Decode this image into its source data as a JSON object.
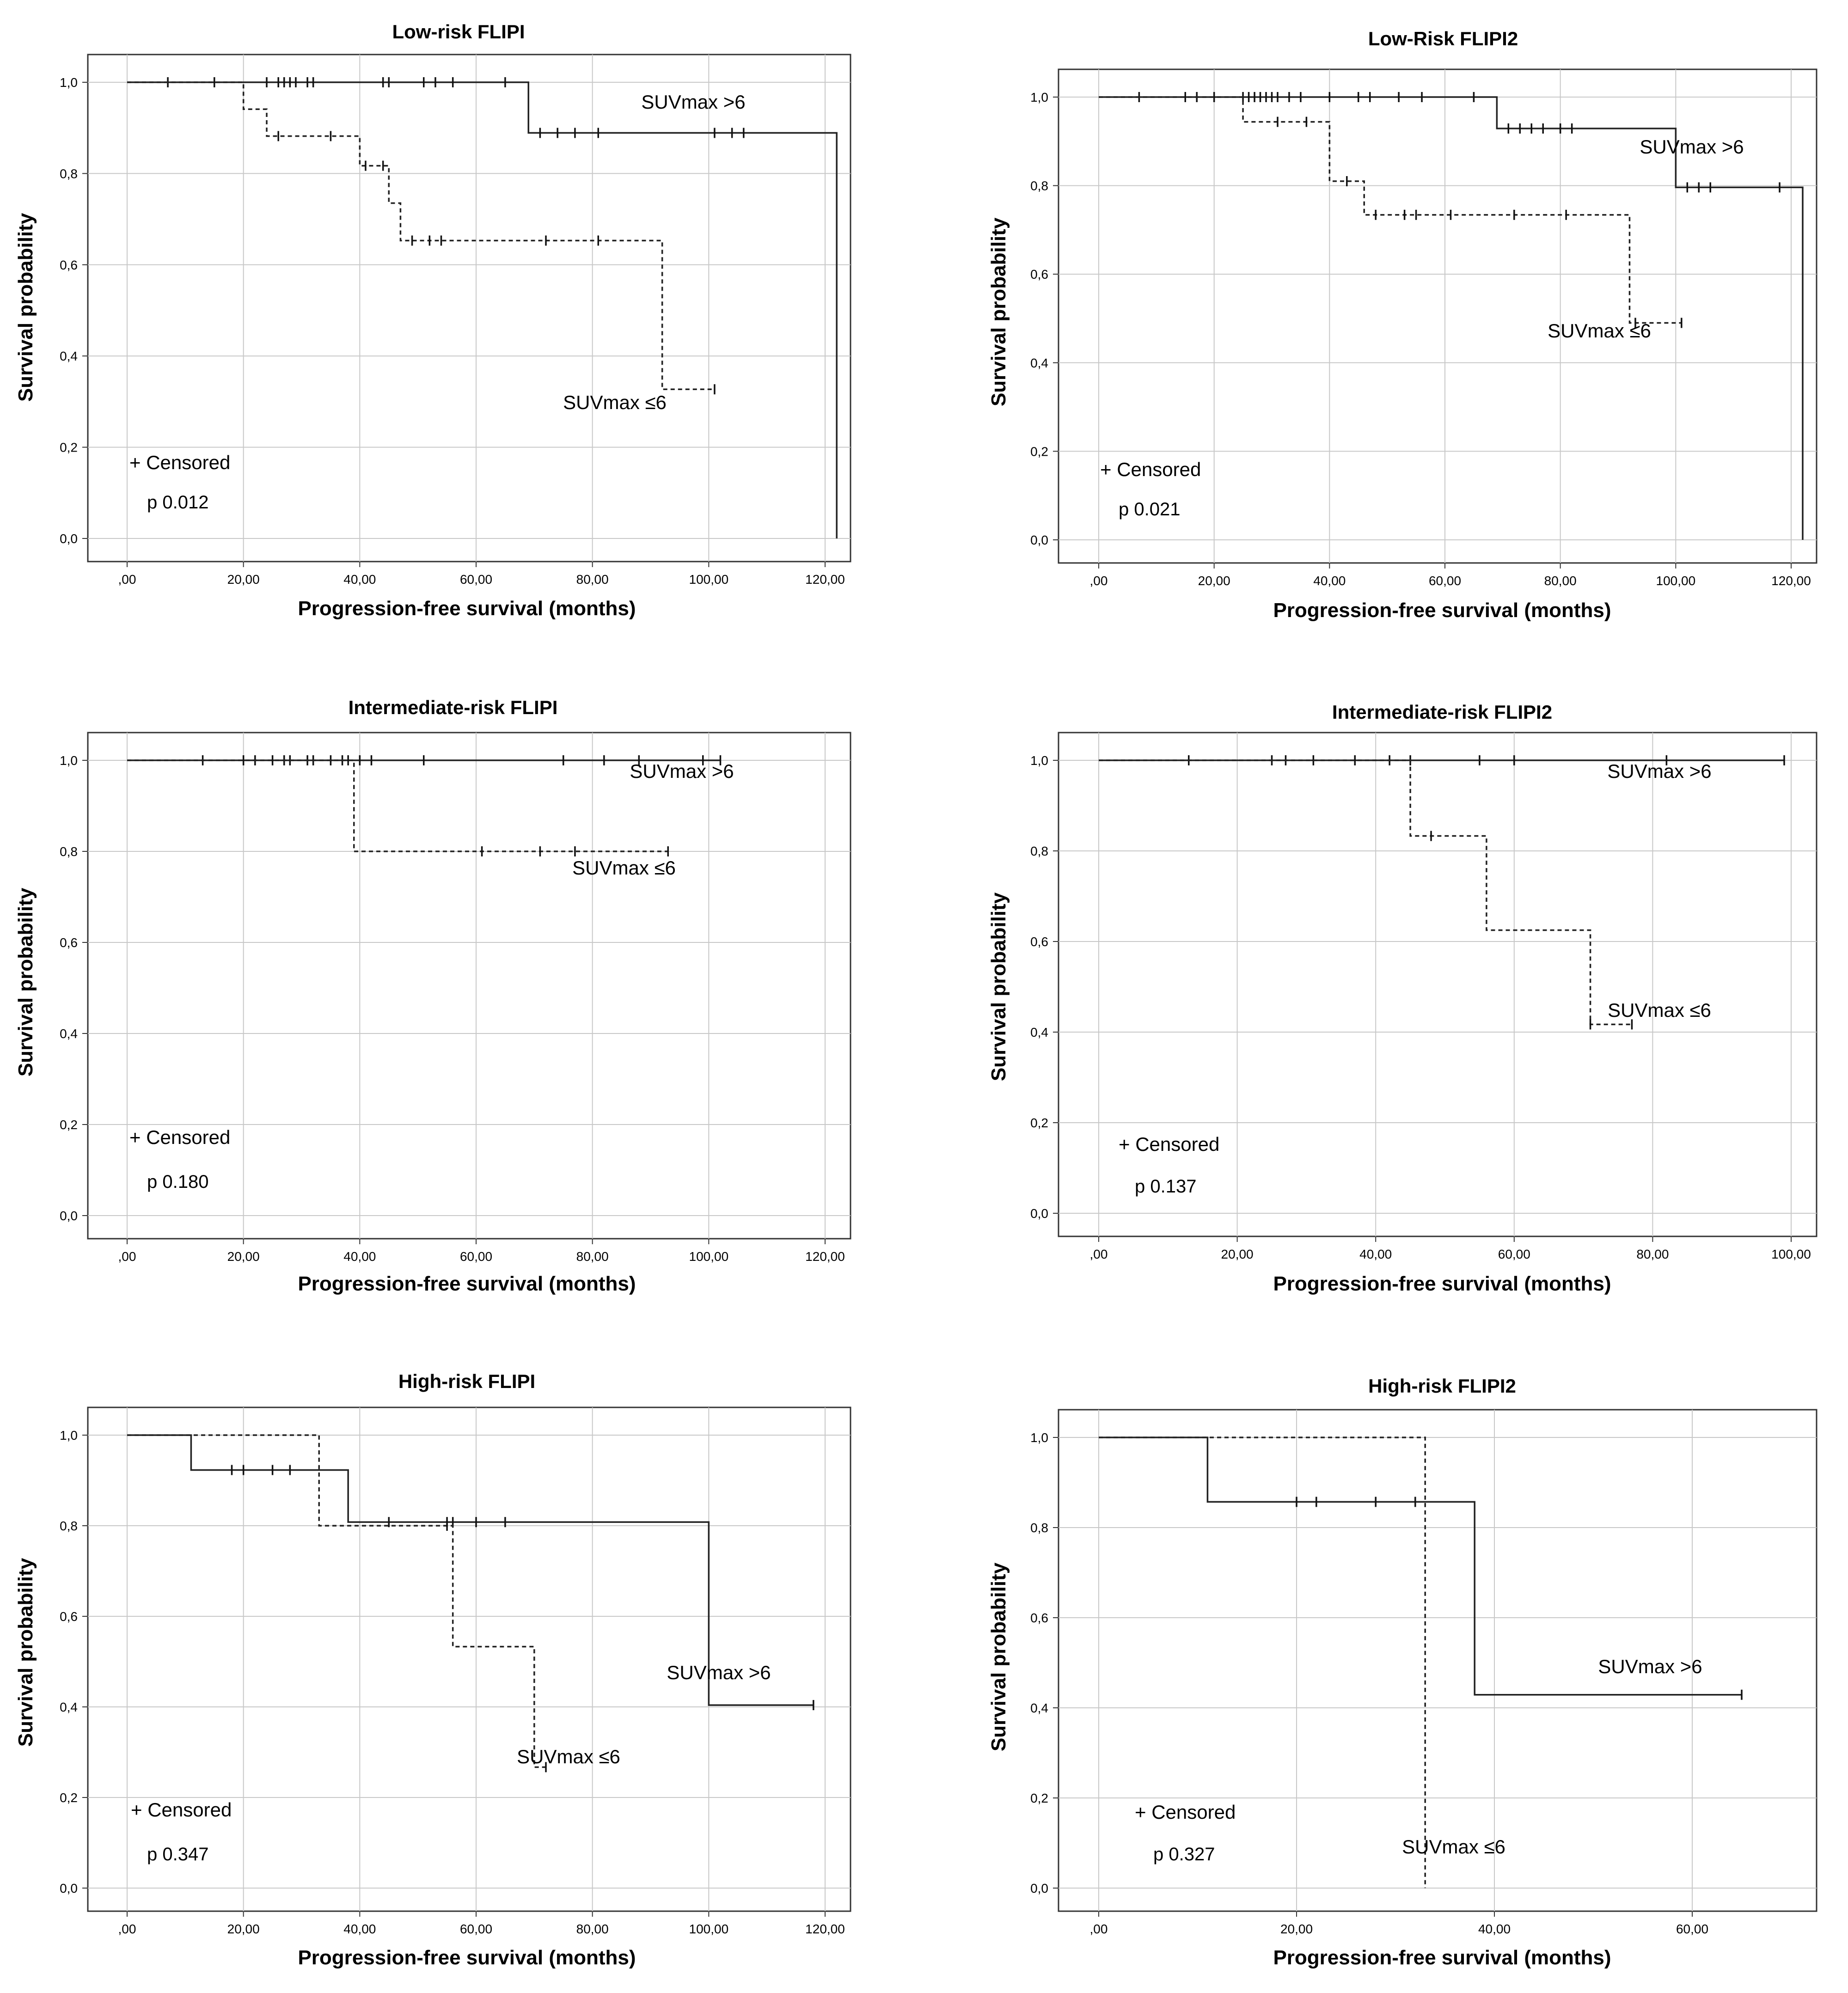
{
  "figure": {
    "legend_censored": "+ Censored",
    "series_color": "#222222"
  },
  "chart_data": [
    {
      "type": "line",
      "subtype": "kaplan-meier",
      "title": "Low-risk FLIPI",
      "xlabel": "Progression-free survival (months)",
      "ylabel": "Survival probability",
      "xlim": [
        0,
        120
      ],
      "ylim": [
        0,
        1
      ],
      "xticks": [
        ",00",
        "20,00",
        "40,00",
        "60,00",
        "80,00",
        "100,00",
        "120,00"
      ],
      "xtick_values": [
        0,
        20,
        40,
        60,
        80,
        100,
        120
      ],
      "yticks": [
        "0,0",
        "0,2",
        "0,4",
        "0,6",
        "0,8",
        "1,0"
      ],
      "ytick_values": [
        0,
        0.2,
        0.4,
        0.6,
        0.8,
        1.0
      ],
      "p_value": "p 0.012",
      "series": [
        {
          "name": "SUVmax >6",
          "style": "solid",
          "steps": [
            [
              0,
              1.0
            ],
            [
              69,
              0.889
            ],
            [
              122,
              0.0
            ]
          ],
          "end_x": 122,
          "censored": [
            [
              7,
              1
            ],
            [
              15,
              1
            ],
            [
              24,
              1
            ],
            [
              26,
              1
            ],
            [
              27,
              1
            ],
            [
              28,
              1
            ],
            [
              29,
              1
            ],
            [
              31,
              1
            ],
            [
              32,
              1
            ],
            [
              44,
              1
            ],
            [
              45,
              1
            ],
            [
              51,
              1
            ],
            [
              53,
              1
            ],
            [
              56,
              1
            ],
            [
              65,
              1
            ],
            [
              71,
              0.889
            ],
            [
              74,
              0.889
            ],
            [
              77,
              0.889
            ],
            [
              81,
              0.889
            ],
            [
              101,
              0.889
            ],
            [
              104,
              0.889
            ],
            [
              106,
              0.889
            ]
          ]
        },
        {
          "name": "SUVmax ≤6",
          "style": "dashed",
          "steps": [
            [
              0,
              1.0
            ],
            [
              20,
              0.941
            ],
            [
              24,
              0.882
            ],
            [
              40,
              0.817
            ],
            [
              45,
              0.735
            ],
            [
              47,
              0.653
            ],
            [
              92,
              0.327
            ]
          ],
          "end_x": 101,
          "censored": [
            [
              26,
              0.882
            ],
            [
              35,
              0.882
            ],
            [
              41,
              0.817
            ],
            [
              44,
              0.817
            ],
            [
              49,
              0.653
            ],
            [
              52,
              0.653
            ],
            [
              54,
              0.653
            ],
            [
              72,
              0.653
            ],
            [
              81,
              0.653
            ],
            [
              101,
              0.327
            ]
          ]
        }
      ]
    },
    {
      "type": "line",
      "subtype": "kaplan-meier",
      "title": "Low-Risk FLIPI2",
      "xlabel": "Progression-free survival (months)",
      "ylabel": "Survival probability",
      "xlim": [
        0,
        120
      ],
      "ylim": [
        0,
        1
      ],
      "xticks": [
        ",00",
        "20,00",
        "40,00",
        "60,00",
        "80,00",
        "100,00",
        "120,00"
      ],
      "xtick_values": [
        0,
        20,
        40,
        60,
        80,
        100,
        120
      ],
      "yticks": [
        "0,0",
        "0,2",
        "0,4",
        "0,6",
        "0,8",
        "1,0"
      ],
      "ytick_values": [
        0,
        0.2,
        0.4,
        0.6,
        0.8,
        1.0
      ],
      "p_value": "p 0.021",
      "series": [
        {
          "name": "SUVmax >6",
          "style": "solid",
          "steps": [
            [
              0,
              1.0
            ],
            [
              69,
              0.929
            ],
            [
              100,
              0.796
            ],
            [
              122,
              0.0
            ]
          ],
          "end_x": 122,
          "censored": [
            [
              7,
              1
            ],
            [
              15,
              1
            ],
            [
              17,
              1
            ],
            [
              20,
              1
            ],
            [
              25,
              1
            ],
            [
              26,
              1
            ],
            [
              27,
              1
            ],
            [
              28,
              1
            ],
            [
              29,
              1
            ],
            [
              30,
              1
            ],
            [
              31,
              1
            ],
            [
              33,
              1
            ],
            [
              35,
              1
            ],
            [
              40,
              1
            ],
            [
              45,
              1
            ],
            [
              47,
              1
            ],
            [
              52,
              1
            ],
            [
              56,
              1
            ],
            [
              65,
              1
            ],
            [
              71,
              0.929
            ],
            [
              73,
              0.929
            ],
            [
              75,
              0.929
            ],
            [
              77,
              0.929
            ],
            [
              80,
              0.929
            ],
            [
              82,
              0.929
            ],
            [
              102,
              0.796
            ],
            [
              104,
              0.796
            ],
            [
              106,
              0.796
            ],
            [
              118,
              0.796
            ]
          ]
        },
        {
          "name": "SUVmax ≤6",
          "style": "dashed",
          "steps": [
            [
              0,
              1.0
            ],
            [
              25,
              0.944
            ],
            [
              40,
              0.81
            ],
            [
              46,
              0.734
            ],
            [
              92,
              0.49
            ]
          ],
          "end_x": 101,
          "censored": [
            [
              31,
              0.944
            ],
            [
              36,
              0.944
            ],
            [
              43,
              0.81
            ],
            [
              48,
              0.734
            ],
            [
              53,
              0.734
            ],
            [
              55,
              0.734
            ],
            [
              61,
              0.734
            ],
            [
              72,
              0.734
            ],
            [
              81,
              0.734
            ],
            [
              93,
              0.49
            ],
            [
              101,
              0.49
            ]
          ]
        }
      ]
    },
    {
      "type": "line",
      "subtype": "kaplan-meier",
      "title": "Intermediate-risk FLIPI",
      "xlabel": "Progression-free survival (months)",
      "ylabel": "Survival probability",
      "xlim": [
        0,
        120
      ],
      "ylim": [
        0,
        1
      ],
      "xticks": [
        ",00",
        "20,00",
        "40,00",
        "60,00",
        "80,00",
        "100,00",
        "120,00"
      ],
      "xtick_values": [
        0,
        20,
        40,
        60,
        80,
        100,
        120
      ],
      "yticks": [
        "0,0",
        "0,2",
        "0,4",
        "0,6",
        "0,8",
        "1,0"
      ],
      "ytick_values": [
        0,
        0.2,
        0.4,
        0.6,
        0.8,
        1.0
      ],
      "p_value": "p 0.180",
      "series": [
        {
          "name": "SUVmax >6",
          "style": "solid",
          "steps": [
            [
              0,
              1.0
            ]
          ],
          "end_x": 102,
          "censored": [
            [
              13,
              1
            ],
            [
              20,
              1
            ],
            [
              22,
              1
            ],
            [
              25,
              1
            ],
            [
              27,
              1
            ],
            [
              28,
              1
            ],
            [
              31,
              1
            ],
            [
              32,
              1
            ],
            [
              35,
              1
            ],
            [
              37,
              1
            ],
            [
              38,
              1
            ],
            [
              40,
              1
            ],
            [
              42,
              1
            ],
            [
              51,
              1
            ],
            [
              75,
              1
            ],
            [
              82,
              1
            ],
            [
              88,
              1
            ],
            [
              99,
              1
            ],
            [
              102,
              1
            ]
          ]
        },
        {
          "name": "SUVmax ≤6",
          "style": "dashed",
          "steps": [
            [
              0,
              1.0
            ],
            [
              39,
              0.8
            ]
          ],
          "end_x": 93,
          "censored": [
            [
              61,
              0.8
            ],
            [
              71,
              0.8
            ],
            [
              77,
              0.8
            ],
            [
              93,
              0.8
            ]
          ]
        }
      ]
    },
    {
      "type": "line",
      "subtype": "kaplan-meier",
      "title": "Intermediate-risk FLIPI2",
      "xlabel": "Progression-free survival (months)",
      "ylabel": "Survival probability",
      "xlim": [
        0,
        100
      ],
      "ylim": [
        0,
        1
      ],
      "xticks": [
        ",00",
        "20,00",
        "40,00",
        "60,00",
        "80,00",
        "100,00"
      ],
      "xtick_values": [
        0,
        20,
        40,
        60,
        80,
        100
      ],
      "yticks": [
        "0,0",
        "0,2",
        "0,4",
        "0,6",
        "0,8",
        "1,0"
      ],
      "ytick_values": [
        0,
        0.2,
        0.4,
        0.6,
        0.8,
        1.0
      ],
      "p_value": "p 0.137",
      "series": [
        {
          "name": "SUVmax >6",
          "style": "solid",
          "steps": [
            [
              0,
              1.0
            ]
          ],
          "end_x": 99,
          "censored": [
            [
              13,
              1
            ],
            [
              25,
              1
            ],
            [
              27,
              1
            ],
            [
              31,
              1
            ],
            [
              37,
              1
            ],
            [
              42,
              1
            ],
            [
              45,
              1
            ],
            [
              55,
              1
            ],
            [
              60,
              1
            ],
            [
              82,
              1
            ],
            [
              99,
              1
            ]
          ]
        },
        {
          "name": "SUVmax ≤6",
          "style": "dashed",
          "steps": [
            [
              0,
              1.0
            ],
            [
              45,
              0.833
            ],
            [
              56,
              0.625
            ],
            [
              71,
              0.417
            ]
          ],
          "end_x": 77,
          "censored": [
            [
              48,
              0.833
            ],
            [
              71,
              0.417
            ],
            [
              77,
              0.417
            ]
          ]
        }
      ]
    },
    {
      "type": "line",
      "subtype": "kaplan-meier",
      "title": "High-risk FLIPI",
      "xlabel": "Progression-free survival (months)",
      "ylabel": "Survival probability",
      "xlim": [
        0,
        120
      ],
      "ylim": [
        0,
        1
      ],
      "xticks": [
        ",00",
        "20,00",
        "40,00",
        "60,00",
        "80,00",
        "100,00",
        "120,00"
      ],
      "xtick_values": [
        0,
        20,
        40,
        60,
        80,
        100,
        120
      ],
      "yticks": [
        "0,0",
        "0,2",
        "0,4",
        "0,6",
        "0,8",
        "1,0"
      ],
      "ytick_values": [
        0,
        0.2,
        0.4,
        0.6,
        0.8,
        1.0
      ],
      "p_value": "p 0.347",
      "series": [
        {
          "name": "SUVmax >6",
          "style": "solid",
          "steps": [
            [
              0,
              1.0
            ],
            [
              11,
              0.923
            ],
            [
              38,
              0.808
            ],
            [
              100,
              0.404
            ]
          ],
          "end_x": 118,
          "censored": [
            [
              18,
              0.923
            ],
            [
              20,
              0.923
            ],
            [
              25,
              0.923
            ],
            [
              28,
              0.923
            ],
            [
              45,
              0.808
            ],
            [
              55,
              0.808
            ],
            [
              56,
              0.808
            ],
            [
              60,
              0.808
            ],
            [
              65,
              0.808
            ],
            [
              118,
              0.404
            ]
          ]
        },
        {
          "name": "SUVmax ≤6",
          "style": "dashed",
          "steps": [
            [
              0,
              1.0
            ],
            [
              33,
              0.8
            ],
            [
              56,
              0.533
            ],
            [
              70,
              0.267
            ]
          ],
          "end_x": 72,
          "censored": [
            [
              55,
              0.8
            ],
            [
              72,
              0.267
            ]
          ]
        }
      ]
    },
    {
      "type": "line",
      "subtype": "kaplan-meier",
      "title": "High-risk FLIPI2",
      "xlabel": "Progression-free survival (months)",
      "ylabel": "Survival probability",
      "xlim": [
        0,
        70
      ],
      "ylim": [
        0,
        1
      ],
      "xticks": [
        ",00",
        "20,00",
        "40,00",
        "60,00"
      ],
      "xtick_values": [
        0,
        20,
        40,
        60
      ],
      "yticks": [
        "0,0",
        "0,2",
        "0,4",
        "0,6",
        "0,8",
        "1,0"
      ],
      "ytick_values": [
        0,
        0.2,
        0.4,
        0.6,
        0.8,
        1.0
      ],
      "p_value": "p 0.327",
      "series": [
        {
          "name": "SUVmax >6",
          "style": "solid",
          "steps": [
            [
              0,
              1.0
            ],
            [
              11,
              0.857
            ],
            [
              38,
              0.429
            ]
          ],
          "end_x": 65,
          "censored": [
            [
              20,
              0.857
            ],
            [
              22,
              0.857
            ],
            [
              28,
              0.857
            ],
            [
              32,
              0.857
            ],
            [
              65,
              0.429
            ]
          ]
        },
        {
          "name": "SUVmax ≤6",
          "style": "dashed",
          "steps": [
            [
              0,
              1.0
            ],
            [
              33,
              0.0
            ]
          ],
          "end_x": 33,
          "censored": []
        }
      ]
    }
  ]
}
